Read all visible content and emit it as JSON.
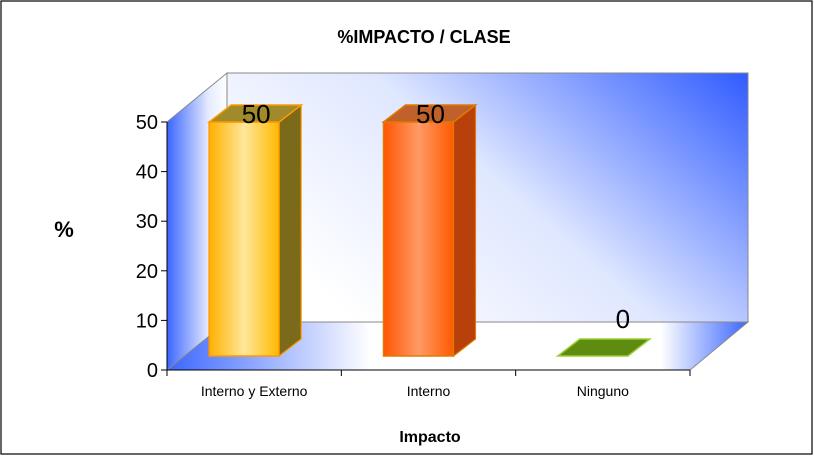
{
  "chart_data": {
    "type": "bar",
    "title": "%IMPACTO / CLASE",
    "xlabel": "Impacto",
    "ylabel": "%",
    "categories": [
      "Interno y Externo",
      "Interno",
      "Ninguno"
    ],
    "values": [
      50,
      50,
      0
    ],
    "data_labels": [
      "50",
      "50",
      "0"
    ],
    "ylim": [
      0,
      50
    ],
    "yticks": [
      0,
      10,
      20,
      30,
      40,
      50
    ],
    "grid": false,
    "legend": "none",
    "three_d": true,
    "colors": {
      "bars": [
        "#FFC21A",
        "#FF5A00",
        "#8BC400"
      ],
      "bar_edges": [
        "#FF9900",
        "#E07A00",
        "#9ACD32"
      ],
      "wall": "#2F5BFF",
      "frame": "#000000"
    }
  }
}
